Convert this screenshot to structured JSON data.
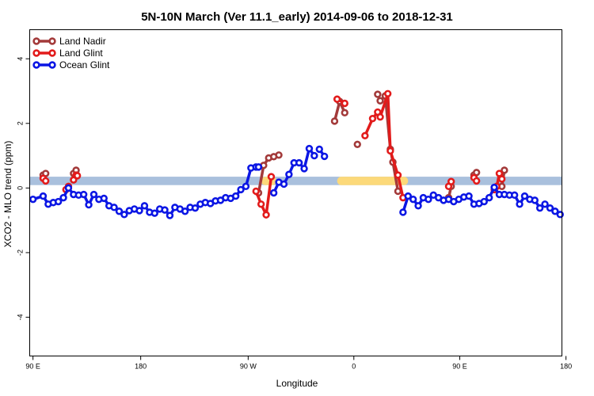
{
  "chart_data": {
    "type": "line",
    "title": "5N-10N March (Ver 11.1_early)   2014-09-06 to 2018-12-31",
    "xlabel": "Longitude",
    "ylabel": "XCO2 - MLO trend (ppm)",
    "xlim": [
      -1.3,
      208.7
    ],
    "ylim": [
      -5.2,
      4.9
    ],
    "x_ticks": [
      {
        "value": 0,
        "label": "90 E"
      },
      {
        "value": 42.5,
        "label": "180"
      },
      {
        "value": 84.9,
        "label": "90 W"
      },
      {
        "value": 126.6,
        "label": "0"
      },
      {
        "value": 168.4,
        "label": "90 E"
      },
      {
        "value": 210.3,
        "label": "180"
      }
    ],
    "y_ticks": [
      {
        "value": -4,
        "label": "-4"
      },
      {
        "value": -2,
        "label": "-2"
      },
      {
        "value": 0,
        "label": "0"
      },
      {
        "value": 2,
        "label": "2"
      },
      {
        "value": 4,
        "label": "4"
      }
    ],
    "legend_position": "top-left",
    "band": {
      "y_center": 0.22,
      "half_width": 0.13,
      "color": "#a9c0dd",
      "highlight_color": "#fcd97a",
      "highlights": [
        {
          "x": [
            90,
            96
          ],
          "y_low": 0.09,
          "y_high": 0.35
        },
        {
          "x": [
            120,
            148
          ],
          "y_low": 0.09,
          "y_high": 0.35
        }
      ]
    },
    "series": [
      {
        "name": "Land Nadir",
        "color": "#a33a3a",
        "segments": [
          {
            "x": [
              4,
              5
            ],
            "y": [
              0.4,
              0.45
            ]
          },
          {
            "x": [
              16,
              17
            ],
            "y": [
              0.45,
              0.55
            ]
          },
          {
            "x": [
              89,
              91,
              93,
              95,
              97
            ],
            "y": [
              -0.15,
              0.7,
              0.93,
              0.97,
              1.02
            ]
          },
          {
            "x": [
              119,
              121,
              123
            ],
            "y": [
              2.07,
              2.68,
              2.33
            ]
          },
          {
            "x": [
              128
            ],
            "y": [
              1.35
            ]
          },
          {
            "x": [
              136,
              137,
              139,
              141,
              142,
              144
            ],
            "y": [
              2.9,
              2.7,
              2.85,
              1.2,
              0.8,
              -0.1
            ]
          },
          {
            "x": [
              164,
              165
            ],
            "y": [
              -0.3,
              0.05
            ]
          },
          {
            "x": [
              174,
              175
            ],
            "y": [
              0.4,
              0.48
            ]
          },
          {
            "x": [
              185,
              186
            ],
            "y": [
              0.05,
              0.55
            ]
          }
        ]
      },
      {
        "name": "Land Glint",
        "color": "#e21b1b",
        "segments": [
          {
            "x": [
              4,
              5
            ],
            "y": [
              0.3,
              0.22
            ]
          },
          {
            "x": [
              13,
              14
            ],
            "y": [
              -0.05,
              0.05
            ]
          },
          {
            "x": [
              16,
              17,
              17.5
            ],
            "y": [
              0.25,
              0.4,
              0.38
            ]
          },
          {
            "x": [
              88,
              90,
              92,
              94
            ],
            "y": [
              -0.1,
              -0.5,
              -0.83,
              0.35
            ]
          },
          {
            "x": [
              120,
              123
            ],
            "y": [
              2.75,
              2.62
            ]
          },
          {
            "x": [
              131,
              134,
              136,
              137,
              140,
              141,
              144,
              146
            ],
            "y": [
              1.62,
              2.15,
              2.35,
              2.2,
              2.92,
              1.15,
              0.4,
              -0.3
            ]
          },
          {
            "x": [
              164,
              165
            ],
            "y": [
              0.05,
              0.2
            ]
          },
          {
            "x": [
              174,
              175
            ],
            "y": [
              0.32,
              0.22
            ]
          },
          {
            "x": [
              182,
              183,
              184,
              185
            ],
            "y": [
              -0.05,
              0.05,
              0.45,
              0.28
            ]
          }
        ]
      },
      {
        "name": "Ocean Glint",
        "color": "#0b16e4",
        "segments": [
          {
            "x": [
              0,
              4,
              6,
              8,
              10,
              12,
              14,
              16,
              18,
              20,
              22,
              24,
              26,
              28,
              30,
              32,
              34,
              36,
              38,
              40,
              42,
              44,
              46,
              48,
              50,
              52,
              54,
              56,
              58,
              60,
              62,
              64,
              66,
              68,
              70,
              72,
              74,
              76,
              78,
              80,
              82,
              84,
              86,
              88,
              89
            ],
            "y": [
              -0.35,
              -0.25,
              -0.5,
              -0.45,
              -0.42,
              -0.3,
              0.0,
              -0.2,
              -0.22,
              -0.2,
              -0.52,
              -0.2,
              -0.35,
              -0.32,
              -0.55,
              -0.6,
              -0.72,
              -0.82,
              -0.7,
              -0.65,
              -0.7,
              -0.55,
              -0.75,
              -0.78,
              -0.65,
              -0.68,
              -0.85,
              -0.6,
              -0.65,
              -0.72,
              -0.6,
              -0.62,
              -0.5,
              -0.45,
              -0.48,
              -0.4,
              -0.38,
              -0.3,
              -0.32,
              -0.25,
              -0.05,
              0.05,
              0.62,
              0.65,
              0.65
            ]
          },
          {
            "x": [
              95,
              97,
              99,
              101,
              103,
              105,
              107,
              109,
              111
            ],
            "y": [
              -0.15,
              0.18,
              0.12,
              0.42,
              0.78,
              0.78,
              0.6,
              1.22,
              1.0
            ]
          },
          {
            "x": [
              113,
              115
            ],
            "y": [
              1.2,
              0.98
            ]
          },
          {
            "x": [
              146,
              148,
              150,
              152,
              154,
              156,
              158,
              160,
              162,
              164,
              166,
              168,
              170,
              172,
              174,
              176,
              178,
              180,
              182,
              184,
              186,
              188,
              190,
              192,
              194,
              196,
              198,
              200,
              202,
              204,
              206,
              208
            ],
            "y": [
              -0.75,
              -0.25,
              -0.35,
              -0.55,
              -0.3,
              -0.35,
              -0.22,
              -0.3,
              -0.38,
              -0.35,
              -0.42,
              -0.35,
              -0.28,
              -0.25,
              -0.5,
              -0.48,
              -0.42,
              -0.3,
              0.02,
              -0.2,
              -0.2,
              -0.22,
              -0.22,
              -0.5,
              -0.25,
              -0.35,
              -0.38,
              -0.62,
              -0.5,
              -0.62,
              -0.72,
              -0.82
            ]
          }
        ]
      }
    ]
  }
}
